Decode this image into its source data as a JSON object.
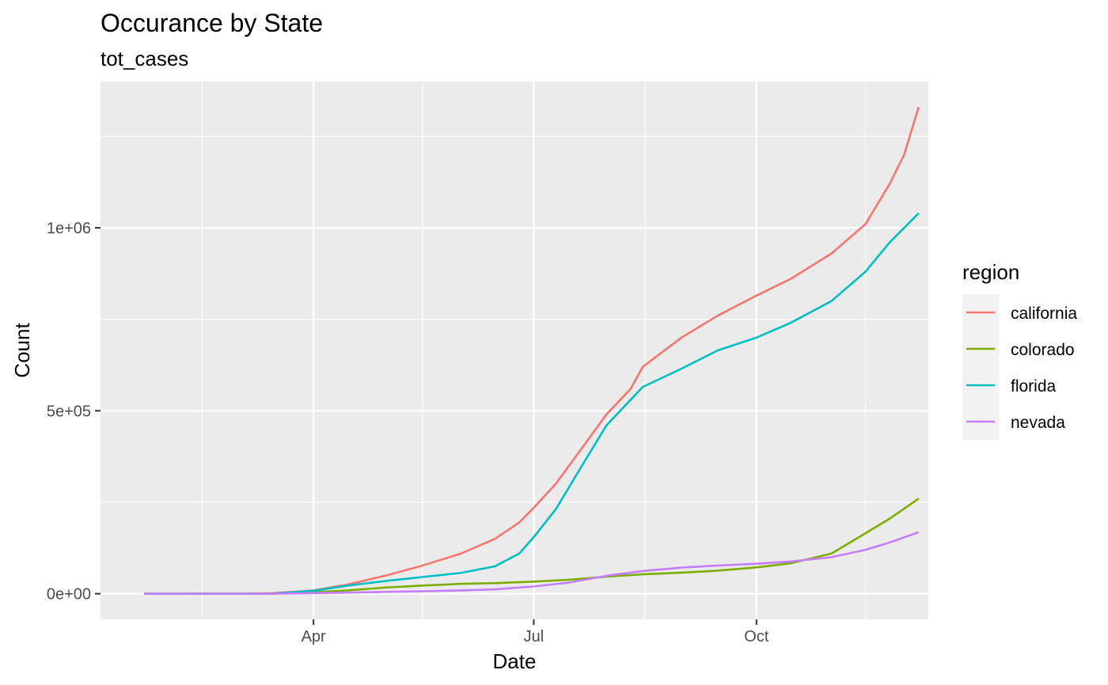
{
  "chart_data": {
    "type": "line",
    "title": "Occurance by State",
    "subtitle": "tot_cases",
    "xlabel": "Date",
    "ylabel": "Count",
    "x_axis_type": "date",
    "xlim": [
      "2020-01-04",
      "2020-12-11"
    ],
    "ylim": [
      -70000,
      1400000
    ],
    "x_ticks": [
      {
        "date": "2020-04-01",
        "label": "Apr"
      },
      {
        "date": "2020-07-01",
        "label": "Jul"
      },
      {
        "date": "2020-10-01",
        "label": "Oct"
      }
    ],
    "x_minor_ticks": [
      "2020-02-15",
      "2020-05-16",
      "2020-08-16",
      "2020-11-15"
    ],
    "y_ticks": [
      {
        "value": 0,
        "label": "0e+00"
      },
      {
        "value": 500000,
        "label": "5e+05"
      },
      {
        "value": 1000000,
        "label": "1e+06"
      }
    ],
    "y_minor_ticks": [
      250000,
      750000,
      1250000
    ],
    "grid": true,
    "panel_background": "#ebebeb",
    "legend": {
      "title": "region",
      "position": "right"
    },
    "series": [
      {
        "name": "california",
        "color": "#F8766D",
        "points": [
          [
            "2020-01-22",
            0
          ],
          [
            "2020-03-01",
            100
          ],
          [
            "2020-03-15",
            1500
          ],
          [
            "2020-04-01",
            9000
          ],
          [
            "2020-04-15",
            25000
          ],
          [
            "2020-05-01",
            50000
          ],
          [
            "2020-05-15",
            75000
          ],
          [
            "2020-06-01",
            110000
          ],
          [
            "2020-06-15",
            150000
          ],
          [
            "2020-06-25",
            195000
          ],
          [
            "2020-07-01",
            235000
          ],
          [
            "2020-07-10",
            300000
          ],
          [
            "2020-07-20",
            390000
          ],
          [
            "2020-07-31",
            490000
          ],
          [
            "2020-08-10",
            560000
          ],
          [
            "2020-08-15",
            620000
          ],
          [
            "2020-08-31",
            700000
          ],
          [
            "2020-09-15",
            760000
          ],
          [
            "2020-10-01",
            815000
          ],
          [
            "2020-10-15",
            860000
          ],
          [
            "2020-11-01",
            930000
          ],
          [
            "2020-11-15",
            1010000
          ],
          [
            "2020-11-25",
            1120000
          ],
          [
            "2020-12-01",
            1200000
          ],
          [
            "2020-12-07",
            1330000
          ]
        ]
      },
      {
        "name": "colorado",
        "color": "#7CAE00",
        "points": [
          [
            "2020-01-22",
            0
          ],
          [
            "2020-03-01",
            0
          ],
          [
            "2020-03-15",
            100
          ],
          [
            "2020-04-01",
            4000
          ],
          [
            "2020-04-15",
            9000
          ],
          [
            "2020-05-01",
            17000
          ],
          [
            "2020-05-15",
            22000
          ],
          [
            "2020-06-01",
            27000
          ],
          [
            "2020-06-15",
            29000
          ],
          [
            "2020-07-01",
            33000
          ],
          [
            "2020-07-15",
            38000
          ],
          [
            "2020-08-01",
            47000
          ],
          [
            "2020-08-15",
            53000
          ],
          [
            "2020-09-01",
            58000
          ],
          [
            "2020-09-15",
            63000
          ],
          [
            "2020-10-01",
            72000
          ],
          [
            "2020-10-15",
            83000
          ],
          [
            "2020-11-01",
            110000
          ],
          [
            "2020-11-15",
            165000
          ],
          [
            "2020-11-25",
            205000
          ],
          [
            "2020-12-07",
            260000
          ]
        ]
      },
      {
        "name": "florida",
        "color": "#00BFC4",
        "points": [
          [
            "2020-01-22",
            0
          ],
          [
            "2020-03-01",
            0
          ],
          [
            "2020-03-15",
            100
          ],
          [
            "2020-04-01",
            8000
          ],
          [
            "2020-04-15",
            22000
          ],
          [
            "2020-05-01",
            35000
          ],
          [
            "2020-05-15",
            45000
          ],
          [
            "2020-06-01",
            57000
          ],
          [
            "2020-06-15",
            75000
          ],
          [
            "2020-06-25",
            110000
          ],
          [
            "2020-07-01",
            155000
          ],
          [
            "2020-07-10",
            230000
          ],
          [
            "2020-07-20",
            340000
          ],
          [
            "2020-07-31",
            460000
          ],
          [
            "2020-08-10",
            530000
          ],
          [
            "2020-08-15",
            565000
          ],
          [
            "2020-08-31",
            615000
          ],
          [
            "2020-09-15",
            665000
          ],
          [
            "2020-10-01",
            700000
          ],
          [
            "2020-10-15",
            740000
          ],
          [
            "2020-11-01",
            800000
          ],
          [
            "2020-11-15",
            880000
          ],
          [
            "2020-11-25",
            960000
          ],
          [
            "2020-12-07",
            1040000
          ]
        ]
      },
      {
        "name": "nevada",
        "color": "#C77CFF",
        "points": [
          [
            "2020-01-22",
            0
          ],
          [
            "2020-03-15",
            0
          ],
          [
            "2020-04-01",
            1500
          ],
          [
            "2020-04-15",
            3000
          ],
          [
            "2020-05-01",
            5000
          ],
          [
            "2020-05-15",
            6500
          ],
          [
            "2020-06-01",
            9000
          ],
          [
            "2020-06-15",
            12000
          ],
          [
            "2020-07-01",
            20000
          ],
          [
            "2020-07-15",
            30000
          ],
          [
            "2020-08-01",
            50000
          ],
          [
            "2020-08-15",
            62000
          ],
          [
            "2020-09-01",
            72000
          ],
          [
            "2020-09-15",
            77000
          ],
          [
            "2020-10-01",
            82000
          ],
          [
            "2020-10-15",
            88000
          ],
          [
            "2020-11-01",
            100000
          ],
          [
            "2020-11-15",
            120000
          ],
          [
            "2020-11-25",
            140000
          ],
          [
            "2020-12-07",
            168000
          ]
        ]
      }
    ]
  }
}
